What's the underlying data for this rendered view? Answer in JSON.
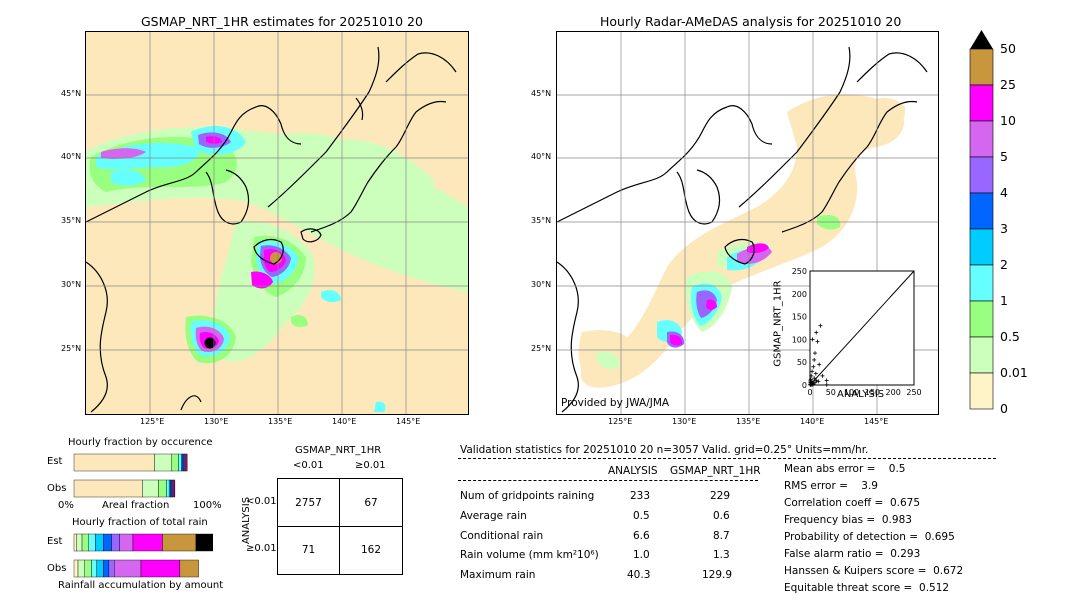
{
  "left_map": {
    "title": "GSMAP_NRT_1HR estimates for 20251010 20",
    "lat_labels": [
      "45°N",
      "40°N",
      "35°N",
      "30°N",
      "25°N"
    ],
    "lon_labels": [
      "125°E",
      "130°E",
      "135°E",
      "140°E",
      "145°E"
    ]
  },
  "right_map": {
    "title": "Hourly Radar-AMeDAS analysis for 20251010 20",
    "lat_labels": [
      "45°N",
      "40°N",
      "35°N",
      "30°N",
      "25°N"
    ],
    "lon_labels": [
      "125°E",
      "130°E",
      "135°E",
      "140°E",
      "145°E"
    ],
    "credit": "Provided by JWA/JMA"
  },
  "colorbar": {
    "labels": [
      "50",
      "25",
      "10",
      "5",
      "4",
      "3",
      "2",
      "1",
      "0.5",
      "0.01",
      "0"
    ],
    "colors": [
      "#c8963c",
      "#ff00ff",
      "#d466f0",
      "#9966ff",
      "#0066ff",
      "#00ccff",
      "#66ffff",
      "#99ff80",
      "#ccffbb",
      "#fff3c8"
    ]
  },
  "chart_data": [
    {
      "type": "scatter",
      "title": "",
      "xlabel": "ANALYSIS",
      "ylabel": "GSMAP_NRT_1HR",
      "xlim": [
        0,
        250
      ],
      "ylim": [
        0,
        250
      ],
      "x_ticks": [
        "0",
        "50",
        "100",
        "150",
        "200",
        "250"
      ],
      "y_ticks": [
        "0",
        "50",
        "100",
        "150",
        "200",
        "250"
      ],
      "points": [
        [
          0.5,
          0.3
        ],
        [
          1,
          2
        ],
        [
          2,
          0.5
        ],
        [
          3,
          5
        ],
        [
          4,
          1
        ],
        [
          5,
          8
        ],
        [
          6,
          2
        ],
        [
          2,
          12
        ],
        [
          8,
          3
        ],
        [
          10,
          15
        ],
        [
          12,
          5
        ],
        [
          3,
          20
        ],
        [
          5,
          30
        ],
        [
          15,
          10
        ],
        [
          20,
          8
        ],
        [
          8,
          40
        ],
        [
          10,
          55
        ],
        [
          12,
          70
        ],
        [
          6,
          100
        ],
        [
          15,
          115
        ],
        [
          18,
          95
        ],
        [
          25,
          130
        ],
        [
          30,
          20
        ],
        [
          40,
          10
        ],
        [
          40.3,
          0.5
        ],
        [
          1,
          6
        ],
        [
          7,
          0.8
        ],
        [
          0.8,
          9
        ],
        [
          14,
          25
        ],
        [
          22,
          45
        ]
      ]
    },
    {
      "type": "bar",
      "title": "Hourly fraction by occurence",
      "categories": [
        "Est",
        "Obs"
      ],
      "x_tick_labels": [
        "0%",
        "100%"
      ],
      "xlabel": "Areal fraction",
      "series": [
        {
          "name": "0",
          "values": [
            0.6,
            0.51
          ]
        },
        {
          "name": "0.01",
          "values": [
            0.13,
            0.12
          ]
        },
        {
          "name": "0.5",
          "values": [
            0.05,
            0.06
          ]
        },
        {
          "name": "1",
          "values": [
            0.02,
            0.02
          ]
        },
        {
          "name": "2",
          "values": [
            0.01,
            0.01
          ]
        },
        {
          "name": "3",
          "values": [
            0.01,
            0.01
          ]
        },
        {
          "name": "4",
          "values": [
            0.005,
            0.005
          ]
        },
        {
          "name": "5",
          "values": [
            0.005,
            0.005
          ]
        },
        {
          "name": "10",
          "values": [
            0.01,
            0.01
          ]
        },
        {
          "name": "25",
          "values": [
            0.005,
            0.003
          ]
        }
      ]
    },
    {
      "type": "bar",
      "title": "Hourly fraction of total rain",
      "categories": [
        "Est",
        "Obs"
      ],
      "xlabel": "Rainfall accumulation by amount",
      "series": [
        {
          "name": "0.01",
          "values": [
            0.02,
            0.03
          ]
        },
        {
          "name": "0.5",
          "values": [
            0.04,
            0.05
          ]
        },
        {
          "name": "1",
          "values": [
            0.05,
            0.05
          ]
        },
        {
          "name": "2",
          "values": [
            0.05,
            0.04
          ]
        },
        {
          "name": "3",
          "values": [
            0.06,
            0.05
          ]
        },
        {
          "name": "4",
          "values": [
            0.06,
            0.04
          ]
        },
        {
          "name": "5",
          "values": [
            0.06,
            0.04
          ]
        },
        {
          "name": "10",
          "values": [
            0.1,
            0.2
          ]
        },
        {
          "name": "25",
          "values": [
            0.22,
            0.29
          ]
        },
        {
          "name": "50",
          "values": [
            0.25,
            0.14
          ]
        },
        {
          "name": "50+",
          "values": [
            0.16,
            0.0
          ]
        }
      ]
    }
  ],
  "contingency": {
    "header": "GSMAP_NRT_1HR",
    "col_labels": [
      "<0.01",
      "≥0.01"
    ],
    "row_labels": [
      "<0.01",
      "≥0.01"
    ],
    "side_label": "ANALYSIS",
    "cells": [
      [
        "2757",
        "67"
      ],
      [
        "71",
        "162"
      ]
    ]
  },
  "validation": {
    "title": "Validation statistics for 20251010 20  n=3057 Valid. grid=0.25° Units=mm/hr.",
    "col_headers": [
      "ANALYSIS",
      "GSMAP_NRT_1HR"
    ],
    "rows": [
      {
        "label": "Num of gridpoints raining",
        "a": "233",
        "b": "229"
      },
      {
        "label": "Average rain",
        "a": "0.5",
        "b": "0.6"
      },
      {
        "label": "Conditional rain",
        "a": "6.6",
        "b": "8.7"
      },
      {
        "label": "Rain volume (mm km²10⁶)",
        "a": "1.0",
        "b": "1.3"
      },
      {
        "label": "Maximum rain",
        "a": "40.3",
        "b": "129.9"
      }
    ],
    "scores": [
      "Mean abs error =    0.5",
      "RMS error =    3.9",
      "Correlation coeff =  0.675",
      "Frequency bias =  0.983",
      "Probability of detection =  0.695",
      "False alarm ratio =  0.293",
      "Hanssen & Kuipers score =  0.672",
      "Equitable threat score =  0.512"
    ]
  }
}
